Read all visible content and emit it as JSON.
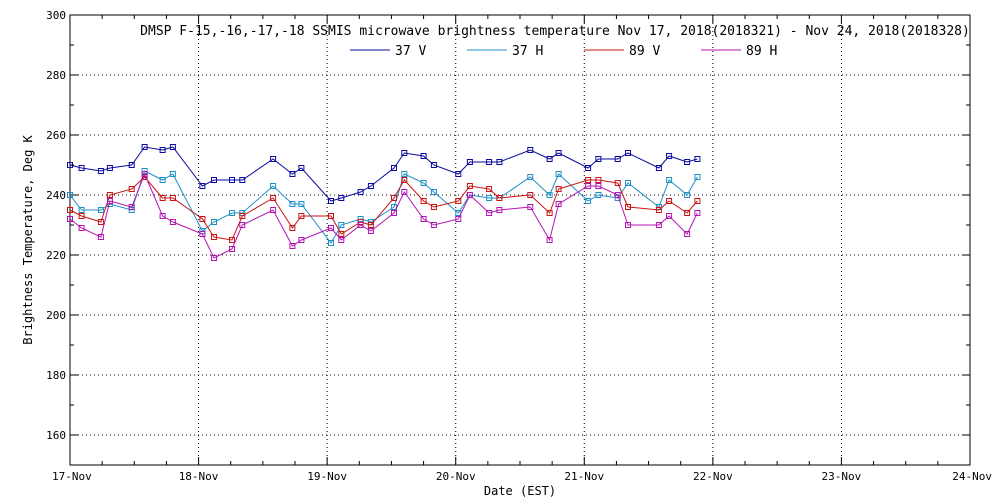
{
  "chart_data": {
    "type": "line",
    "title": "DMSP F-15,-16,-17,-18 SSMIS microwave brightness temperature Nov 17, 2018(2018321) - Nov 24, 2018(2018328)",
    "xlabel": "Date (EST)",
    "ylabel": "Brightness Temperature, Deg K",
    "xlim": [
      0,
      7
    ],
    "ylim": [
      150,
      300
    ],
    "x_ticks": [
      {
        "value": 0,
        "label": "17-Nov"
      },
      {
        "value": 1,
        "label": "18-Nov"
      },
      {
        "value": 2,
        "label": "19-Nov"
      },
      {
        "value": 3,
        "label": "20-Nov"
      },
      {
        "value": 4,
        "label": "21-Nov"
      },
      {
        "value": 5,
        "label": "22-Nov"
      },
      {
        "value": 6,
        "label": "23-Nov"
      },
      {
        "value": 7,
        "label": "24-Nov"
      }
    ],
    "y_ticks": [
      160,
      180,
      200,
      220,
      240,
      260,
      280,
      300
    ],
    "grid": true,
    "legend_position": "top-center",
    "series": [
      {
        "name": "37 V",
        "color": "#0a0aa0",
        "points": [
          [
            0,
            250
          ],
          [
            0.09,
            249
          ],
          [
            0.24,
            248
          ],
          [
            0.31,
            249
          ],
          [
            0.48,
            250
          ],
          [
            0.58,
            256
          ],
          [
            0.72,
            255
          ],
          [
            0.8,
            256
          ],
          [
            1.03,
            243
          ],
          [
            1.12,
            245
          ],
          [
            1.26,
            245
          ],
          [
            1.34,
            245
          ],
          [
            1.58,
            252
          ],
          [
            1.73,
            247
          ],
          [
            1.8,
            249
          ],
          [
            2.03,
            238
          ],
          [
            2.11,
            239
          ],
          [
            2.26,
            241
          ],
          [
            2.34,
            243
          ],
          [
            2.52,
            249
          ],
          [
            2.6,
            254
          ],
          [
            2.75,
            253
          ],
          [
            2.83,
            250
          ],
          [
            3.02,
            247
          ],
          [
            3.11,
            251
          ],
          [
            3.26,
            251
          ],
          [
            3.34,
            251
          ],
          [
            3.58,
            255
          ],
          [
            3.73,
            252
          ],
          [
            3.8,
            254
          ],
          [
            4.03,
            249
          ],
          [
            4.11,
            252
          ],
          [
            4.26,
            252
          ],
          [
            4.34,
            254
          ],
          [
            4.58,
            249
          ],
          [
            4.66,
            253
          ],
          [
            4.8,
            251
          ],
          [
            4.88,
            252
          ]
        ]
      },
      {
        "name": "37 H",
        "color": "#1e90c8",
        "points": [
          [
            0,
            240
          ],
          [
            0.09,
            235
          ],
          [
            0.24,
            235
          ],
          [
            0.31,
            237
          ],
          [
            0.48,
            235
          ],
          [
            0.58,
            248
          ],
          [
            0.72,
            245
          ],
          [
            0.8,
            247
          ],
          [
            1.03,
            228
          ],
          [
            1.12,
            231
          ],
          [
            1.26,
            234
          ],
          [
            1.34,
            234
          ],
          [
            1.58,
            243
          ],
          [
            1.73,
            237
          ],
          [
            1.8,
            237
          ],
          [
            2.03,
            224
          ],
          [
            2.11,
            230
          ],
          [
            2.26,
            232
          ],
          [
            2.34,
            231
          ],
          [
            2.52,
            236
          ],
          [
            2.6,
            247
          ],
          [
            2.75,
            244
          ],
          [
            2.83,
            241
          ],
          [
            3.02,
            234
          ],
          [
            3.11,
            240
          ],
          [
            3.26,
            239
          ],
          [
            3.34,
            239
          ],
          [
            3.58,
            246
          ],
          [
            3.73,
            240
          ],
          [
            3.8,
            247
          ],
          [
            4.03,
            238
          ],
          [
            4.11,
            240
          ],
          [
            4.26,
            239
          ],
          [
            4.34,
            244
          ],
          [
            4.58,
            236
          ],
          [
            4.66,
            245
          ],
          [
            4.8,
            240
          ],
          [
            4.88,
            246
          ]
        ]
      },
      {
        "name": "89 V",
        "color": "#c81414",
        "points": [
          [
            0,
            235
          ],
          [
            0.09,
            233
          ],
          [
            0.24,
            231
          ],
          [
            0.31,
            240
          ],
          [
            0.48,
            242
          ],
          [
            0.58,
            246
          ],
          [
            0.72,
            239
          ],
          [
            0.8,
            239
          ],
          [
            1.03,
            232
          ],
          [
            1.12,
            226
          ],
          [
            1.26,
            225
          ],
          [
            1.34,
            233
          ],
          [
            1.58,
            239
          ],
          [
            1.73,
            229
          ],
          [
            1.8,
            233
          ],
          [
            2.03,
            233
          ],
          [
            2.11,
            227
          ],
          [
            2.26,
            231
          ],
          [
            2.34,
            230
          ],
          [
            2.52,
            239
          ],
          [
            2.6,
            245
          ],
          [
            2.75,
            238
          ],
          [
            2.83,
            236
          ],
          [
            3.02,
            238
          ],
          [
            3.11,
            243
          ],
          [
            3.26,
            242
          ],
          [
            3.34,
            239
          ],
          [
            3.58,
            240
          ],
          [
            3.73,
            234
          ],
          [
            3.8,
            242
          ],
          [
            4.03,
            245
          ],
          [
            4.11,
            245
          ],
          [
            4.26,
            244
          ],
          [
            4.34,
            236
          ],
          [
            4.58,
            235
          ],
          [
            4.66,
            238
          ],
          [
            4.8,
            234
          ],
          [
            4.88,
            238
          ]
        ]
      },
      {
        "name": "89 H",
        "color": "#b414b4",
        "points": [
          [
            0,
            232
          ],
          [
            0.09,
            229
          ],
          [
            0.24,
            226
          ],
          [
            0.31,
            238
          ],
          [
            0.48,
            236
          ],
          [
            0.58,
            247
          ],
          [
            0.72,
            233
          ],
          [
            0.8,
            231
          ],
          [
            1.03,
            227
          ],
          [
            1.12,
            219
          ],
          [
            1.26,
            222
          ],
          [
            1.34,
            230
          ],
          [
            1.58,
            235
          ],
          [
            1.73,
            223
          ],
          [
            1.8,
            225
          ],
          [
            2.03,
            229
          ],
          [
            2.11,
            225
          ],
          [
            2.26,
            230
          ],
          [
            2.34,
            228
          ],
          [
            2.52,
            234
          ],
          [
            2.6,
            241
          ],
          [
            2.75,
            232
          ],
          [
            2.83,
            230
          ],
          [
            3.02,
            232
          ],
          [
            3.11,
            240
          ],
          [
            3.26,
            234
          ],
          [
            3.34,
            235
          ],
          [
            3.58,
            236
          ],
          [
            3.73,
            225
          ],
          [
            3.8,
            237
          ],
          [
            4.03,
            243
          ],
          [
            4.11,
            243
          ],
          [
            4.26,
            240
          ],
          [
            4.34,
            230
          ],
          [
            4.58,
            230
          ],
          [
            4.66,
            233
          ],
          [
            4.8,
            227
          ],
          [
            4.88,
            234
          ]
        ]
      }
    ]
  }
}
